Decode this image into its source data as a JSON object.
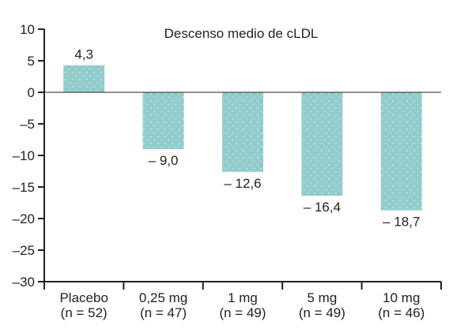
{
  "chart_data": {
    "type": "bar",
    "title": "Descenso medio de cLDL",
    "categories": [
      "Placebo",
      "0,25 mg",
      "1 mg",
      "5 mg",
      "10 mg"
    ],
    "category_sublabels": [
      "(n = 52)",
      "(n = 47)",
      "(n = 49)",
      "(n = 49)",
      "(n = 46)"
    ],
    "values": [
      4.3,
      -9.0,
      -12.6,
      -16.4,
      -18.7
    ],
    "data_labels": [
      "4,3",
      "– 9,0",
      "– 12,6",
      "– 16,4",
      "– 18,7"
    ],
    "ylim": [
      -30,
      10
    ],
    "yticks": [
      10,
      5,
      0,
      -5,
      -10,
      -15,
      -20,
      -25,
      -30
    ],
    "ytick_labels": [
      "10",
      "5",
      "0",
      "–5",
      "–10",
      "–15",
      "–20",
      "–25",
      "–30"
    ],
    "xlabel": "",
    "ylabel": "",
    "grid": false,
    "bar_color": "#93cccc",
    "dot_color": "#ffffff"
  }
}
